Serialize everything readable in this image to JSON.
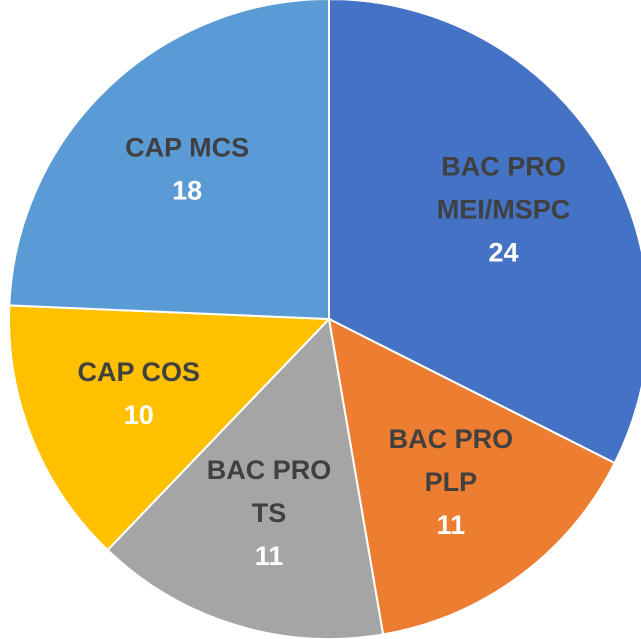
{
  "chart_data": {
    "type": "pie",
    "categories": [
      "BAC PRO\nMEI/MSPC",
      "BAC PRO\nPLP",
      "BAC PRO\nTS",
      "CAP COS",
      "CAP MCS"
    ],
    "values": [
      24,
      11,
      11,
      10,
      18
    ],
    "colors": [
      "#4472c4",
      "#ed7d31",
      "#a5a5a5",
      "#ffc000",
      "#5b9bd5"
    ]
  }
}
